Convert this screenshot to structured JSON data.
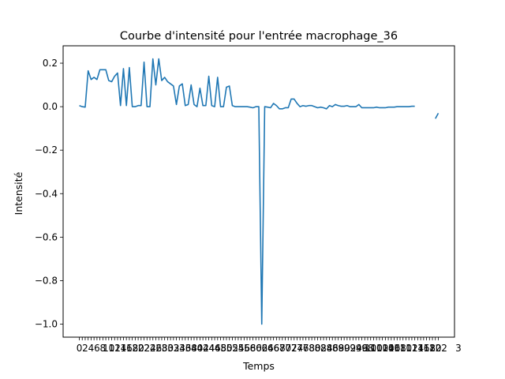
{
  "chart_data": {
    "type": "line",
    "title": "Courbe d'intensité pour l'entrée macrophage_36",
    "xlabel": "Temps",
    "ylabel": "Intensité",
    "xlim": [
      -5.5,
      127.5
    ],
    "ylim": [
      -1.06,
      0.28
    ],
    "yticks": [
      -1.0,
      -0.8,
      -0.6,
      -0.4,
      -0.2,
      0.0,
      0.2
    ],
    "ytick_labels": [
      "−1.0",
      "−0.8",
      "−0.6",
      "−0.4",
      "−0.2",
      "0.0",
      "0.2"
    ],
    "x_ticks_start": 0,
    "x_ticks_end": 122,
    "x_ticks_step": 1,
    "x_tick_labels_visible_right": "3",
    "grid": false,
    "series": [
      {
        "color": "#1f77b4",
        "x": [
          0,
          1,
          2,
          3,
          4,
          5,
          6,
          7,
          8,
          9,
          10,
          11,
          12,
          13,
          14,
          15,
          16,
          17,
          18,
          19,
          20,
          21,
          22,
          23,
          24,
          25,
          26,
          27,
          28,
          29,
          30,
          31,
          32,
          33,
          34,
          35,
          36,
          37,
          38,
          39,
          40,
          41,
          42,
          43,
          44,
          45,
          46,
          47,
          48,
          49,
          50,
          51,
          52,
          53,
          54,
          55,
          56,
          57,
          58,
          59,
          60,
          61,
          62,
          63,
          64,
          65,
          66,
          67,
          68,
          69,
          70,
          71,
          72,
          73,
          74,
          75,
          76,
          77,
          78,
          79,
          80,
          81,
          82,
          83,
          84,
          85,
          86,
          87,
          88,
          89,
          90,
          91,
          92,
          93,
          94,
          95,
          96,
          97,
          98,
          99,
          100,
          101,
          102,
          103,
          104,
          105,
          106,
          107,
          108,
          109,
          110,
          111,
          112,
          113,
          114,
          115,
          116,
          117,
          118,
          119,
          120,
          121,
          122
        ],
        "y": [
          0.005,
          0.0,
          -0.002,
          0.165,
          0.125,
          0.135,
          0.125,
          0.17,
          0.17,
          0.17,
          0.12,
          0.115,
          0.14,
          0.155,
          0.005,
          0.175,
          0.005,
          0.18,
          0.0,
          0.0,
          0.005,
          0.005,
          0.205,
          0.0,
          0.0,
          0.22,
          0.1,
          0.22,
          0.12,
          0.135,
          0.115,
          0.105,
          0.095,
          0.01,
          0.095,
          0.105,
          0.005,
          0.01,
          0.1,
          0.01,
          0.0,
          0.085,
          0.005,
          0.005,
          0.14,
          0.005,
          0.0,
          0.135,
          0.0,
          0.0,
          0.09,
          0.095,
          0.005,
          0.0,
          0.0,
          0.0,
          0.0,
          0.0,
          -0.002,
          -0.005,
          0.0,
          0.0,
          -1.0,
          0.0,
          -0.002,
          -0.005,
          0.015,
          0.005,
          -0.01,
          -0.01,
          -0.005,
          -0.005,
          0.035,
          0.035,
          0.015,
          0.0,
          0.005,
          0.002,
          0.005,
          0.005,
          0.0,
          -0.005,
          -0.002,
          -0.005,
          -0.01,
          0.005,
          0.0,
          0.01,
          0.005,
          0.002,
          0.002,
          0.005,
          0.0,
          0.0,
          0.0,
          0.01,
          -0.005,
          -0.005,
          -0.005,
          -0.005,
          -0.005,
          -0.002,
          -0.005,
          -0.005,
          -0.005,
          -0.002,
          -0.002,
          -0.002,
          0.0,
          0.0,
          0.0,
          0.0,
          0.0,
          0.002,
          0.002,
          null,
          null,
          null,
          null,
          null,
          null,
          -0.055,
          -0.03
        ]
      }
    ]
  }
}
